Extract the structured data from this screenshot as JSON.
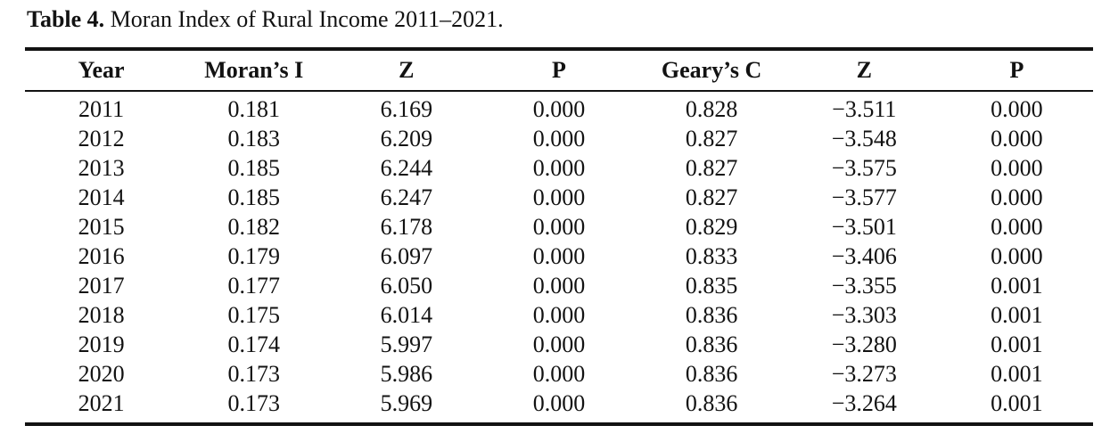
{
  "caption": {
    "label": "Table 4.",
    "text": " Moran Index of Rural Income 2011–2021."
  },
  "table": {
    "columns": [
      "Year",
      "Moran’s I",
      "Z",
      "P",
      "Geary’s C",
      "Z",
      "P"
    ],
    "rows": [
      [
        "2011",
        "0.181",
        "6.169",
        "0.000",
        "0.828",
        "−3.511",
        "0.000"
      ],
      [
        "2012",
        "0.183",
        "6.209",
        "0.000",
        "0.827",
        "−3.548",
        "0.000"
      ],
      [
        "2013",
        "0.185",
        "6.244",
        "0.000",
        "0.827",
        "−3.575",
        "0.000"
      ],
      [
        "2014",
        "0.185",
        "6.247",
        "0.000",
        "0.827",
        "−3.577",
        "0.000"
      ],
      [
        "2015",
        "0.182",
        "6.178",
        "0.000",
        "0.829",
        "−3.501",
        "0.000"
      ],
      [
        "2016",
        "0.179",
        "6.097",
        "0.000",
        "0.833",
        "−3.406",
        "0.000"
      ],
      [
        "2017",
        "0.177",
        "6.050",
        "0.000",
        "0.835",
        "−3.355",
        "0.001"
      ],
      [
        "2018",
        "0.175",
        "6.014",
        "0.000",
        "0.836",
        "−3.303",
        "0.001"
      ],
      [
        "2019",
        "0.174",
        "5.997",
        "0.000",
        "0.836",
        "−3.280",
        "0.001"
      ],
      [
        "2020",
        "0.173",
        "5.986",
        "0.000",
        "0.836",
        "−3.273",
        "0.001"
      ],
      [
        "2021",
        "0.173",
        "5.969",
        "0.000",
        "0.836",
        "−3.264",
        "0.001"
      ]
    ],
    "text_color": "#121212",
    "rule_color": "#121212",
    "background_color": "#ffffff"
  }
}
